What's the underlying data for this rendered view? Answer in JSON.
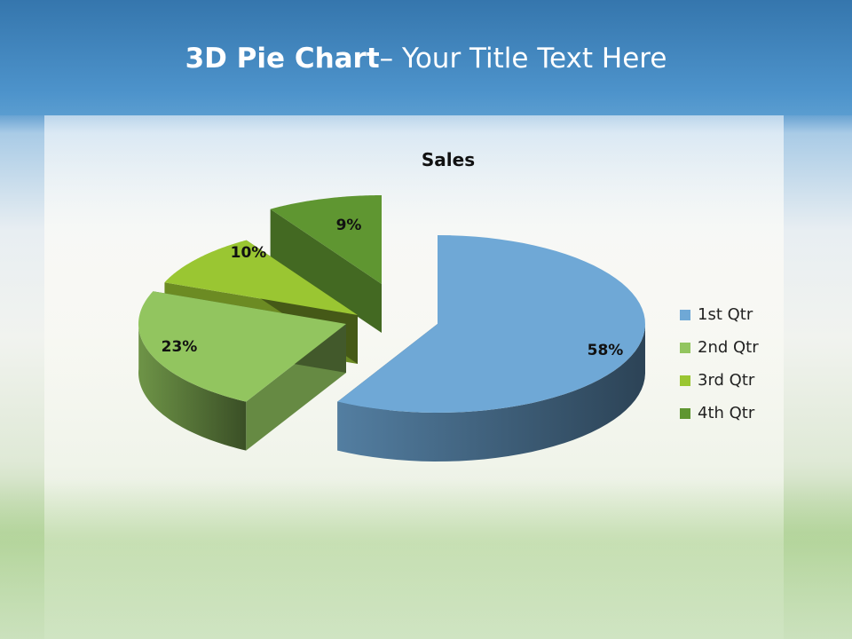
{
  "slide": {
    "title_bold": "3D Pie Chart",
    "title_rest": "– Your Title Text Here"
  },
  "chart_data": {
    "type": "pie",
    "style": "3d-exploded",
    "title": "Sales",
    "categories": [
      "1st Qtr",
      "2nd Qtr",
      "3rd Qtr",
      "4th Qtr"
    ],
    "values": [
      58,
      23,
      10,
      9
    ],
    "data_labels": [
      "58%",
      "23%",
      "10%",
      "9%"
    ],
    "colors": [
      "#6fa8d6",
      "#92c55f",
      "#9ac632",
      "#5f9631"
    ],
    "legend": "right"
  }
}
